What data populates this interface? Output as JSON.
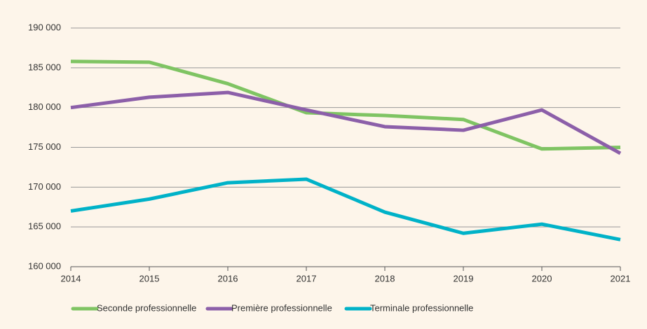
{
  "chart_data": {
    "type": "line",
    "x": [
      2014,
      2015,
      2016,
      2017,
      2018,
      2019,
      2020,
      2021
    ],
    "xlim": [
      2014,
      2021
    ],
    "xticks": [
      2014,
      2015,
      2016,
      2017,
      2018,
      2019,
      2020,
      2021
    ],
    "ylim": [
      160000,
      190000
    ],
    "yticks": [
      {
        "value": 160000,
        "label": "160 000"
      },
      {
        "value": 165000,
        "label": "165 000"
      },
      {
        "value": 170000,
        "label": "170 000"
      },
      {
        "value": 175000,
        "label": "175 000"
      },
      {
        "value": 180000,
        "label": "180 000"
      },
      {
        "value": 185000,
        "label": "185 000"
      },
      {
        "value": 190000,
        "label": "190 000"
      }
    ],
    "grid": true,
    "legend": "bottom",
    "series": [
      {
        "name": "Seconde professionnelle",
        "color": "#7fc463",
        "values": [
          185800,
          185700,
          183000,
          179350,
          179000,
          178500,
          174800,
          175000
        ]
      },
      {
        "name": "Première professionnelle",
        "color": "#8c5fa9",
        "values": [
          180000,
          181300,
          181900,
          179700,
          177600,
          177150,
          179700,
          174250
        ]
      },
      {
        "name": "Terminale professionnelle",
        "color": "#00b2c8",
        "values": [
          167000,
          168500,
          170550,
          171000,
          166860,
          164200,
          165350,
          163400
        ]
      }
    ]
  }
}
